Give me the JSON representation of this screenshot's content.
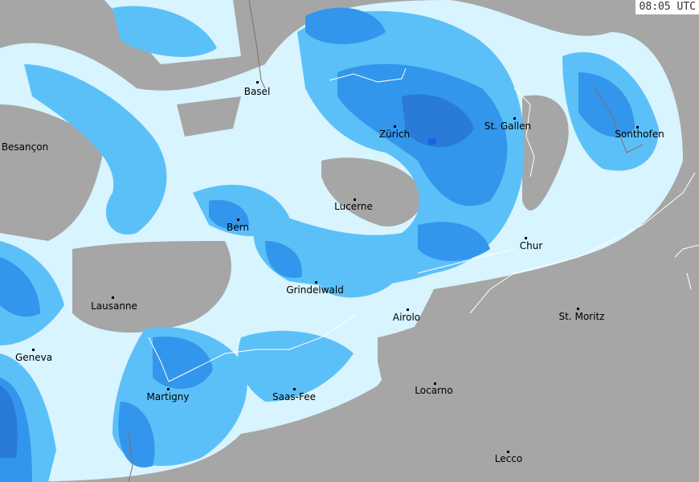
{
  "timestamp": "08:05 UTC",
  "colors": {
    "land": "#a6a6a6",
    "rain_light": "#d8f4ff",
    "rain_moderate": "#5cc0f8",
    "rain_heavy": "#3296ec",
    "rain_very_heavy": "#2a7ad8",
    "border": "#ffffff"
  },
  "cities": [
    {
      "name": "Basel"
    },
    {
      "name": "Besançon"
    },
    {
      "name": "Zürich"
    },
    {
      "name": "St. Gallen"
    },
    {
      "name": "Sonthofen"
    },
    {
      "name": "Lucerne"
    },
    {
      "name": "Bern"
    },
    {
      "name": "Chur"
    },
    {
      "name": "Grindelwald"
    },
    {
      "name": "Lausanne"
    },
    {
      "name": "Airolo"
    },
    {
      "name": "St. Moritz"
    },
    {
      "name": "Geneva"
    },
    {
      "name": "Martigny"
    },
    {
      "name": "Saas-Fee"
    },
    {
      "name": "Locarno"
    },
    {
      "name": "Lecco"
    }
  ]
}
